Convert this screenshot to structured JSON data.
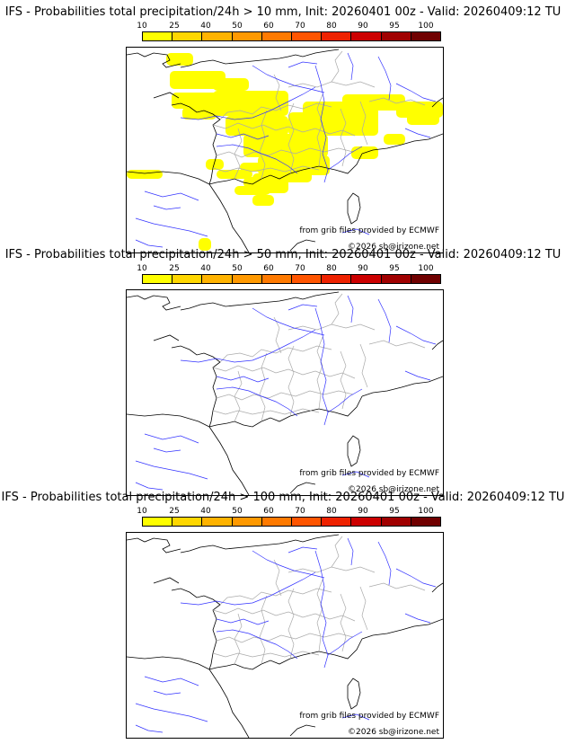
{
  "legend": {
    "ticks": [
      "10",
      "25",
      "40",
      "50",
      "60",
      "70",
      "80",
      "90",
      "95",
      "100"
    ],
    "colors": [
      "#ffff00",
      "#ffd700",
      "#ffb300",
      "#ff9900",
      "#ff7a00",
      "#ff5500",
      "#ee2200",
      "#cc0000",
      "#a00000",
      "#700000"
    ]
  },
  "map_style": {
    "river_color": "#3333ff",
    "border_color": "#aaaaaa",
    "coast_color": "#000000",
    "shade_color": "#ffff00"
  },
  "panels": [
    {
      "title": "IFS - Probabilities total precipitation/24h > 10 mm, Init: 20260401 00z - Valid: 20260409:12 TU",
      "source": "from grib files provided by ECMWF",
      "copyright": "©2026 sb@irizone.net",
      "shaded_class": "10-25"
    },
    {
      "title": "IFS - Probabilities total precipitation/24h > 50 mm, Init: 20260401 00z - Valid: 20260409:12 TU",
      "source": "from grib files provided by ECMWF",
      "copyright": "©2026 sb@irizone.net",
      "shaded_class": "none"
    },
    {
      "title": "IFS - Probabilities total precipitation/24h > 100 mm, Init: 20260401 00z - Valid: 20260409:12 TU",
      "source": "from grib files provided by ECMWF",
      "copyright": "©2026 sb@irizone.net",
      "shaded_class": "none"
    }
  ]
}
